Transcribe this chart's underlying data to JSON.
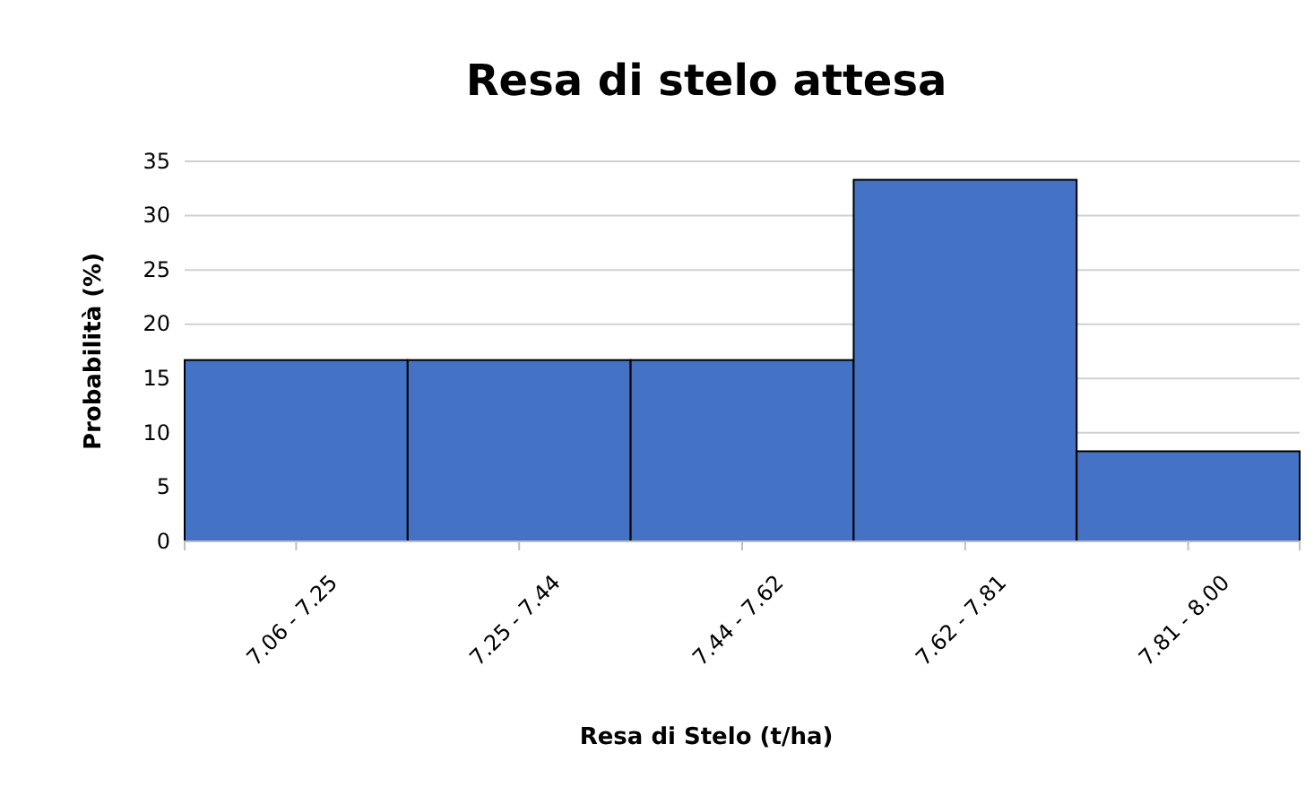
{
  "chart_data": {
    "type": "bar",
    "title": "Resa di stelo attesa",
    "xlabel": "Resa di Stelo (t/ha)",
    "ylabel": "Probabilità (%)",
    "categories": [
      "7.06 - 7.25",
      "7.25 - 7.44",
      "7.44 - 7.62",
      "7.62 - 7.81",
      "7.81 - 8.00"
    ],
    "values": [
      16.7,
      16.7,
      16.7,
      33.3,
      8.3
    ],
    "color": "#4472c4",
    "ylim": [
      0,
      35
    ],
    "yticks": [
      0,
      5,
      10,
      15,
      20,
      25,
      30,
      35
    ],
    "grid": "y"
  }
}
